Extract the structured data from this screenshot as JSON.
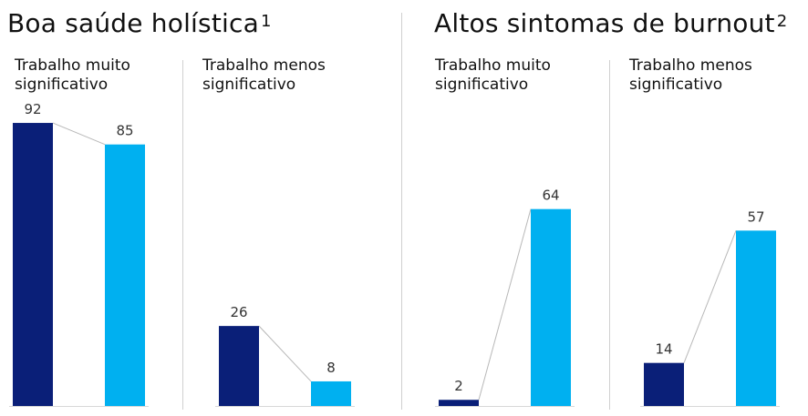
{
  "sections": [
    {
      "title": "Boa saúde holística",
      "footnote": "1"
    },
    {
      "title": "Altos sintomas de burnout",
      "footnote": "2"
    }
  ],
  "panel_labels": [
    "Trabalho muito significativo",
    "Trabalho menos significativo",
    "Trabalho muito significativo",
    "Trabalho menos significativo"
  ],
  "colors": {
    "series_a": "#0a1f78",
    "series_b": "#00b0f0",
    "connector": "#b8b8b8",
    "baseline": "#d8d8d8"
  },
  "chart_data": [
    {
      "type": "bar",
      "title": "Boa saúde holística",
      "categories": [
        "Trabalho muito significativo"
      ],
      "series": [
        {
          "values": [
            92
          ]
        },
        {
          "values": [
            85
          ]
        }
      ]
    },
    {
      "type": "bar",
      "title": "Boa saúde holística",
      "categories": [
        "Trabalho menos significativo"
      ],
      "series": [
        {
          "values": [
            26
          ]
        },
        {
          "values": [
            8
          ]
        }
      ]
    },
    {
      "type": "bar",
      "title": "Altos sintomas de burnout",
      "categories": [
        "Trabalho muito significativo"
      ],
      "series": [
        {
          "values": [
            2
          ]
        },
        {
          "values": [
            64
          ]
        }
      ]
    },
    {
      "type": "bar",
      "title": "Altos sintomas de burnout",
      "categories": [
        "Trabalho menos significativo"
      ],
      "series": [
        {
          "values": [
            14
          ]
        },
        {
          "values": [
            57
          ]
        }
      ]
    }
  ]
}
